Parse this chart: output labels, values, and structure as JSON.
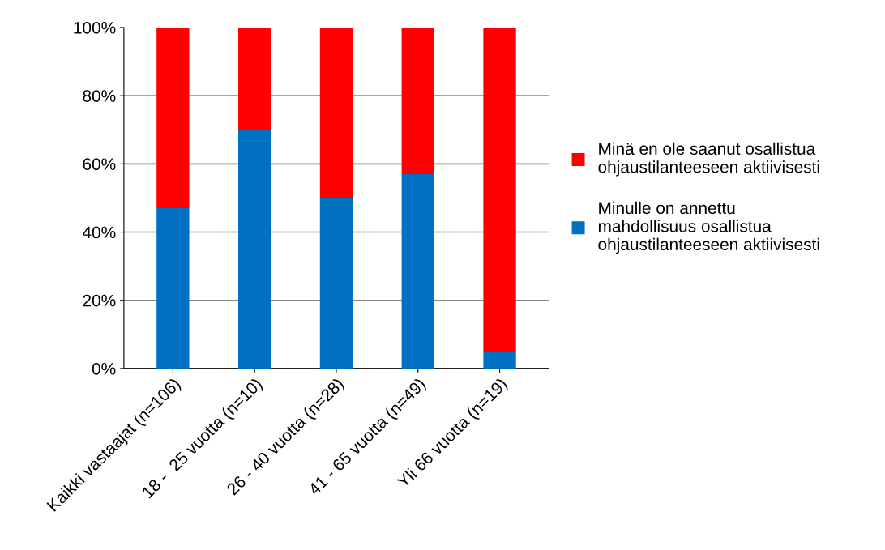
{
  "chart_data": {
    "type": "bar",
    "stacked": true,
    "categories": [
      "Kaikki vastaajat (n=106)",
      "18 -  25 vuotta (n=10)",
      "26 - 40 vuotta (n=28)",
      "41 - 65 vuotta (n=49)",
      "Yli 66 vuotta (n=19)"
    ],
    "series": [
      {
        "name": "Minulle on annettu\nmahdollisuus osallistua\nohjaustilanteeseen aktiivisesti",
        "color": "#0070c0",
        "values": [
          47,
          70,
          50,
          57,
          5
        ]
      },
      {
        "name": "Minä en ole saanut osallistua\nohjaustilanteeseen aktiivisesti",
        "color": "#ff0000",
        "values": [
          53,
          30,
          50,
          43,
          95
        ]
      }
    ],
    "ylim": [
      0,
      100
    ],
    "yticks": [
      {
        "value": 0,
        "label": "0%"
      },
      {
        "value": 20,
        "label": "20%"
      },
      {
        "value": 40,
        "label": "40%"
      },
      {
        "value": 60,
        "label": "60%"
      },
      {
        "value": 80,
        "label": "80%"
      },
      {
        "value": 100,
        "label": "100%"
      }
    ],
    "grid": "y",
    "legend": "right"
  }
}
